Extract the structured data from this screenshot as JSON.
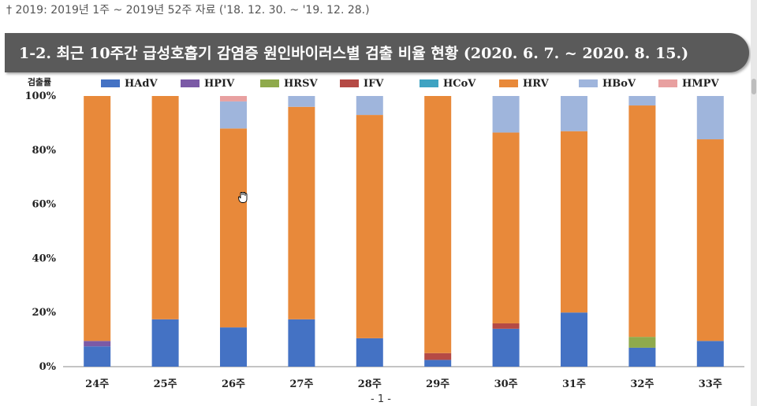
{
  "header_note": "† 2019: 2019년 1주 ~ 2019년 52주 자료 ('18. 12. 30. ~ '19. 12. 28.)",
  "section_title": "1-2. 최근 10주간 급성호흡기 감염증 원인바이러스별 검출 비율 현황 (2020. 6. 7. ~ 2020. 8. 15.)",
  "page_number": "- 1 -",
  "chart_data": {
    "type": "bar",
    "stacked": true,
    "ylabel": "검출률",
    "ylim": [
      0,
      100
    ],
    "yticks": [
      "0%",
      "20%",
      "40%",
      "60%",
      "80%",
      "100%"
    ],
    "legend_position": "top",
    "categories": [
      "24주",
      "25주",
      "26주",
      "27주",
      "28주",
      "29주",
      "30주",
      "31주",
      "32주",
      "33주"
    ],
    "series": [
      {
        "name": "HAdV",
        "color": "#4472c4",
        "values": [
          7.5,
          17.5,
          14.5,
          17.5,
          10.5,
          2.5,
          14,
          20,
          7,
          9.5
        ]
      },
      {
        "name": "HPIV",
        "color": "#7b5aa6",
        "values": [
          2,
          0,
          0,
          0,
          0,
          0,
          0,
          0,
          0,
          0
        ]
      },
      {
        "name": "HRSV",
        "color": "#8faa4c",
        "values": [
          0,
          0,
          0,
          0,
          0,
          0,
          0,
          0,
          4,
          0
        ]
      },
      {
        "name": "IFV",
        "color": "#b54a45",
        "values": [
          0,
          0,
          0,
          0,
          0,
          2.5,
          2,
          0,
          0,
          0
        ]
      },
      {
        "name": "HCoV",
        "color": "#3fa3c2",
        "values": [
          0,
          0,
          0,
          0,
          0,
          0,
          0,
          0,
          0,
          0
        ]
      },
      {
        "name": "HRV",
        "color": "#e8893a",
        "values": [
          90.5,
          82.5,
          73.5,
          78.5,
          82.5,
          95,
          70.5,
          67,
          85.5,
          74.5
        ]
      },
      {
        "name": "HBoV",
        "color": "#9fb5dc",
        "values": [
          0,
          0,
          10,
          4,
          7,
          0,
          13.5,
          13,
          3.5,
          16
        ]
      },
      {
        "name": "HMPV",
        "color": "#e8a0a0",
        "values": [
          0,
          0,
          2,
          0,
          0,
          0,
          0,
          0,
          0,
          0
        ]
      }
    ]
  }
}
